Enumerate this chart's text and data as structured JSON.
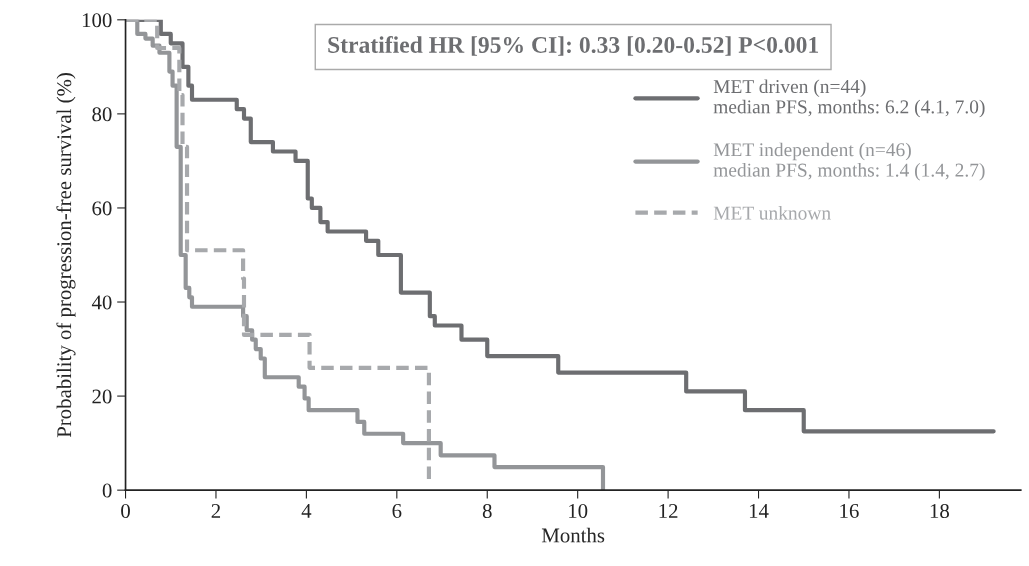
{
  "chart_data": {
    "type": "step",
    "xlabel": "Months",
    "ylabel": "Probability of progression-free survival (%)",
    "xlim": [
      0,
      19.8
    ],
    "xticks": [
      0,
      2,
      4,
      6,
      8,
      10,
      12,
      14,
      16,
      18
    ],
    "ylim": [
      0,
      100
    ],
    "yticks": [
      0,
      20,
      40,
      60,
      80,
      100
    ],
    "grid": false,
    "legend": "right",
    "line_style": "solid",
    "marker": "none",
    "annotations": [
      "Stratified HR [95% CI]: 0.33 [0.20-0.52] P<0.001"
    ],
    "series": [
      {
        "name": "MET driven (n=44)\nmedian PFS, months: 6.2 (4.1, 7.0)",
        "color": "#6d6e71",
        "x": [
          0,
          0.78,
          1.0,
          1.26,
          1.39,
          1.47,
          2.46,
          2.62,
          2.77,
          3.26,
          3.76,
          4.03,
          4.12,
          4.31,
          4.47,
          5.32,
          5.59,
          6.09,
          6.73,
          6.84,
          7.43,
          8.0,
          9.57,
          12.4,
          13.7,
          15.0,
          19.2
        ],
        "values": [
          100,
          97,
          95,
          90,
          86,
          83,
          81,
          79,
          74,
          72,
          70,
          62,
          60,
          57,
          55,
          53,
          50,
          42,
          37,
          35,
          32,
          28.5,
          25,
          21,
          17,
          12.5,
          12.5
        ]
      },
      {
        "name": "MET independent (n=46)\nmedian PFS, months: 1.4 (1.4, 2.7)",
        "color": "#939598",
        "x": [
          0,
          0.26,
          0.44,
          0.6,
          0.75,
          0.97,
          1.04,
          1.13,
          1.22,
          1.33,
          1.41,
          1.47,
          2.6,
          2.68,
          2.8,
          2.88,
          2.99,
          3.08,
          3.83,
          3.96,
          4.05,
          5.13,
          5.28,
          6.14,
          6.97,
          8.16,
          10.56
        ],
        "values": [
          100,
          97,
          96,
          94.5,
          93,
          89,
          86,
          73,
          50,
          43,
          41,
          39,
          37,
          34,
          32,
          30,
          28,
          24,
          22,
          19.5,
          17,
          14.5,
          12,
          10,
          7.4,
          4.9,
          0
        ]
      },
      {
        "name": "MET unknown",
        "color": "#a7a9ac",
        "line_style": "dashed",
        "x": [
          0,
          0.7,
          1.19,
          1.26,
          1.36,
          2.6,
          2.62,
          4.07,
          6.71
        ],
        "values": [
          100,
          94,
          84,
          73,
          51,
          45,
          33,
          26,
          2
        ]
      }
    ]
  }
}
